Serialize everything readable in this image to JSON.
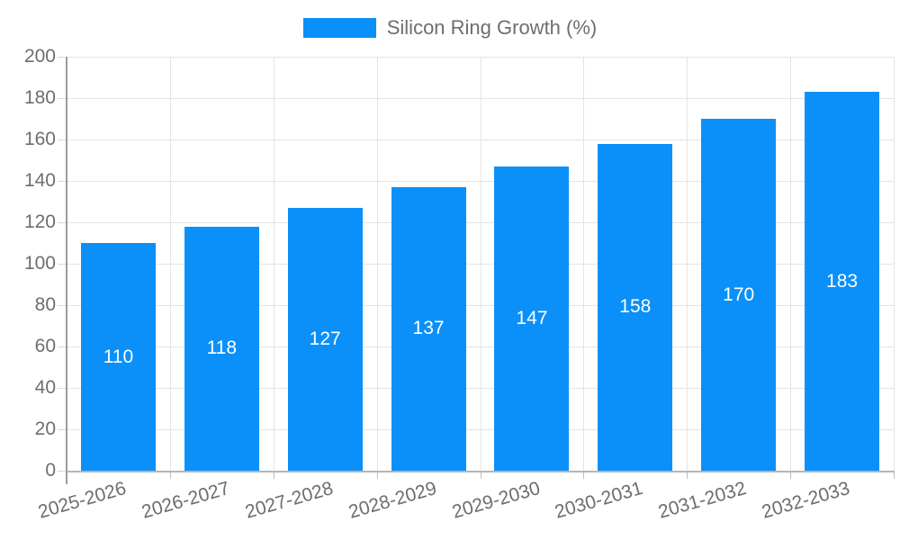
{
  "chart_data": {
    "type": "bar",
    "title": "Silicon Ring Growth (%)",
    "legend_position": "top",
    "series": [
      {
        "name": "Silicon Ring Growth (%)",
        "color": "#0a90f8",
        "values": [
          110,
          118,
          127,
          137,
          147,
          158,
          170,
          183
        ]
      }
    ],
    "categories": [
      "2025-2026",
      "2026-2027",
      "2027-2028",
      "2028-2029",
      "2029-2030",
      "2030-2031",
      "2031-2032",
      "2032-2033"
    ],
    "xlabel": "",
    "ylabel": "",
    "ylim": [
      0,
      200
    ],
    "ytick_step": 20,
    "yticks": [
      0,
      20,
      40,
      60,
      80,
      100,
      120,
      140,
      160,
      180,
      200
    ],
    "grid": true,
    "value_labels": "inside-center",
    "colors": {
      "bar": "#0a90f8",
      "value_text": "#ffffff",
      "axis_text": "#6e6e6e",
      "gridline": "#e4e4e4",
      "y_axis_line": "#9b9b9b",
      "x_axis_line": "#b5b5b5"
    }
  }
}
